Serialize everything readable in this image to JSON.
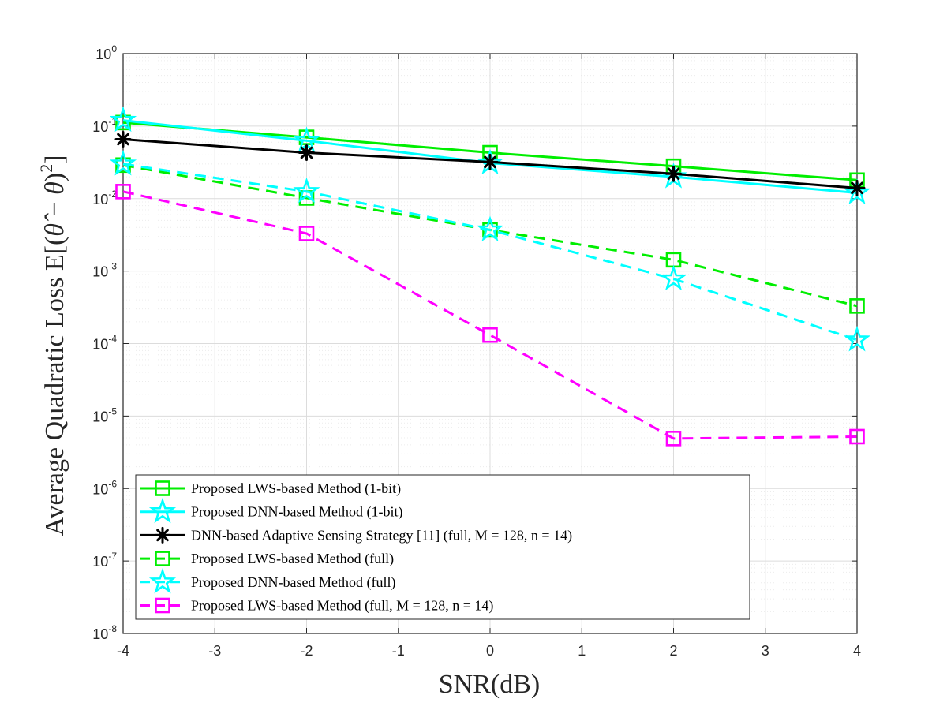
{
  "chart_data": {
    "type": "line",
    "title": "",
    "xlabel": "SNR(dB)",
    "ylabel": "Average Quadratic Loss E[(θ̂ − θ)²]",
    "xlim": [
      -4,
      4
    ],
    "ylim": [
      1e-08,
      1
    ],
    "yscale": "log",
    "grid": true,
    "legend_position": "bottom-left",
    "x_ticks": [
      -4,
      -3,
      -2,
      -1,
      0,
      1,
      2,
      3,
      4
    ],
    "x_tick_labels": [
      "-4",
      "-3",
      "-2",
      "-1",
      "0",
      "1",
      "2",
      "3",
      "4"
    ],
    "y_ticks": [
      {
        "value": 1,
        "base": "10",
        "exp": "0"
      },
      {
        "value": 0.1,
        "base": "10",
        "exp": "-1"
      },
      {
        "value": 0.01,
        "base": "10",
        "exp": "-2"
      },
      {
        "value": 0.001,
        "base": "10",
        "exp": "-3"
      },
      {
        "value": 0.0001,
        "base": "10",
        "exp": "-4"
      },
      {
        "value": 1e-05,
        "base": "10",
        "exp": "-5"
      },
      {
        "value": 1e-06,
        "base": "10",
        "exp": "-6"
      },
      {
        "value": 1e-07,
        "base": "10",
        "exp": "-7"
      },
      {
        "value": 1e-08,
        "base": "10",
        "exp": "-8"
      }
    ],
    "series": [
      {
        "name": "Proposed LWS-based Method (1-bit)",
        "color": "#00ee00",
        "dash": "solid",
        "marker": "square",
        "x": [
          -4,
          -2,
          0,
          2,
          4
        ],
        "values": [
          0.112,
          0.07,
          0.043,
          0.028,
          0.018
        ]
      },
      {
        "name": "Proposed DNN-based Method (1-bit)",
        "color": "#00ffff",
        "dash": "solid",
        "marker": "star",
        "x": [
          -4,
          -2,
          0,
          2,
          4
        ],
        "values": [
          0.12,
          0.063,
          0.031,
          0.02,
          0.012
        ]
      },
      {
        "name": "DNN-based Adaptive Sensing Strategy [11] (full, M = 128, n = 14)",
        "color": "#000000",
        "dash": "solid",
        "marker": "asterisk",
        "x": [
          -4,
          -2,
          0,
          2,
          4
        ],
        "values": [
          0.066,
          0.043,
          0.032,
          0.022,
          0.014
        ]
      },
      {
        "name": "Proposed LWS-based Method (full)",
        "color": "#00ee00",
        "dash": "dashed",
        "marker": "square",
        "x": [
          -4,
          -2,
          0,
          2,
          4
        ],
        "values": [
          0.029,
          0.0102,
          0.0037,
          0.00143,
          0.00033
        ]
      },
      {
        "name": "Proposed DNN-based Method (full)",
        "color": "#00ffff",
        "dash": "dashed",
        "marker": "star",
        "x": [
          -4,
          -2,
          0,
          2,
          4
        ],
        "values": [
          0.03,
          0.0125,
          0.0037,
          0.00078,
          0.000112
        ]
      },
      {
        "name": "Proposed LWS-based Method (full, M = 128, n = 14)",
        "color": "#ff00ff",
        "dash": "dashed",
        "marker": "square",
        "x": [
          -4,
          -2,
          0,
          2,
          4
        ],
        "values": [
          0.0125,
          0.0033,
          0.000131,
          4.9e-06,
          5.2e-06
        ]
      }
    ]
  }
}
